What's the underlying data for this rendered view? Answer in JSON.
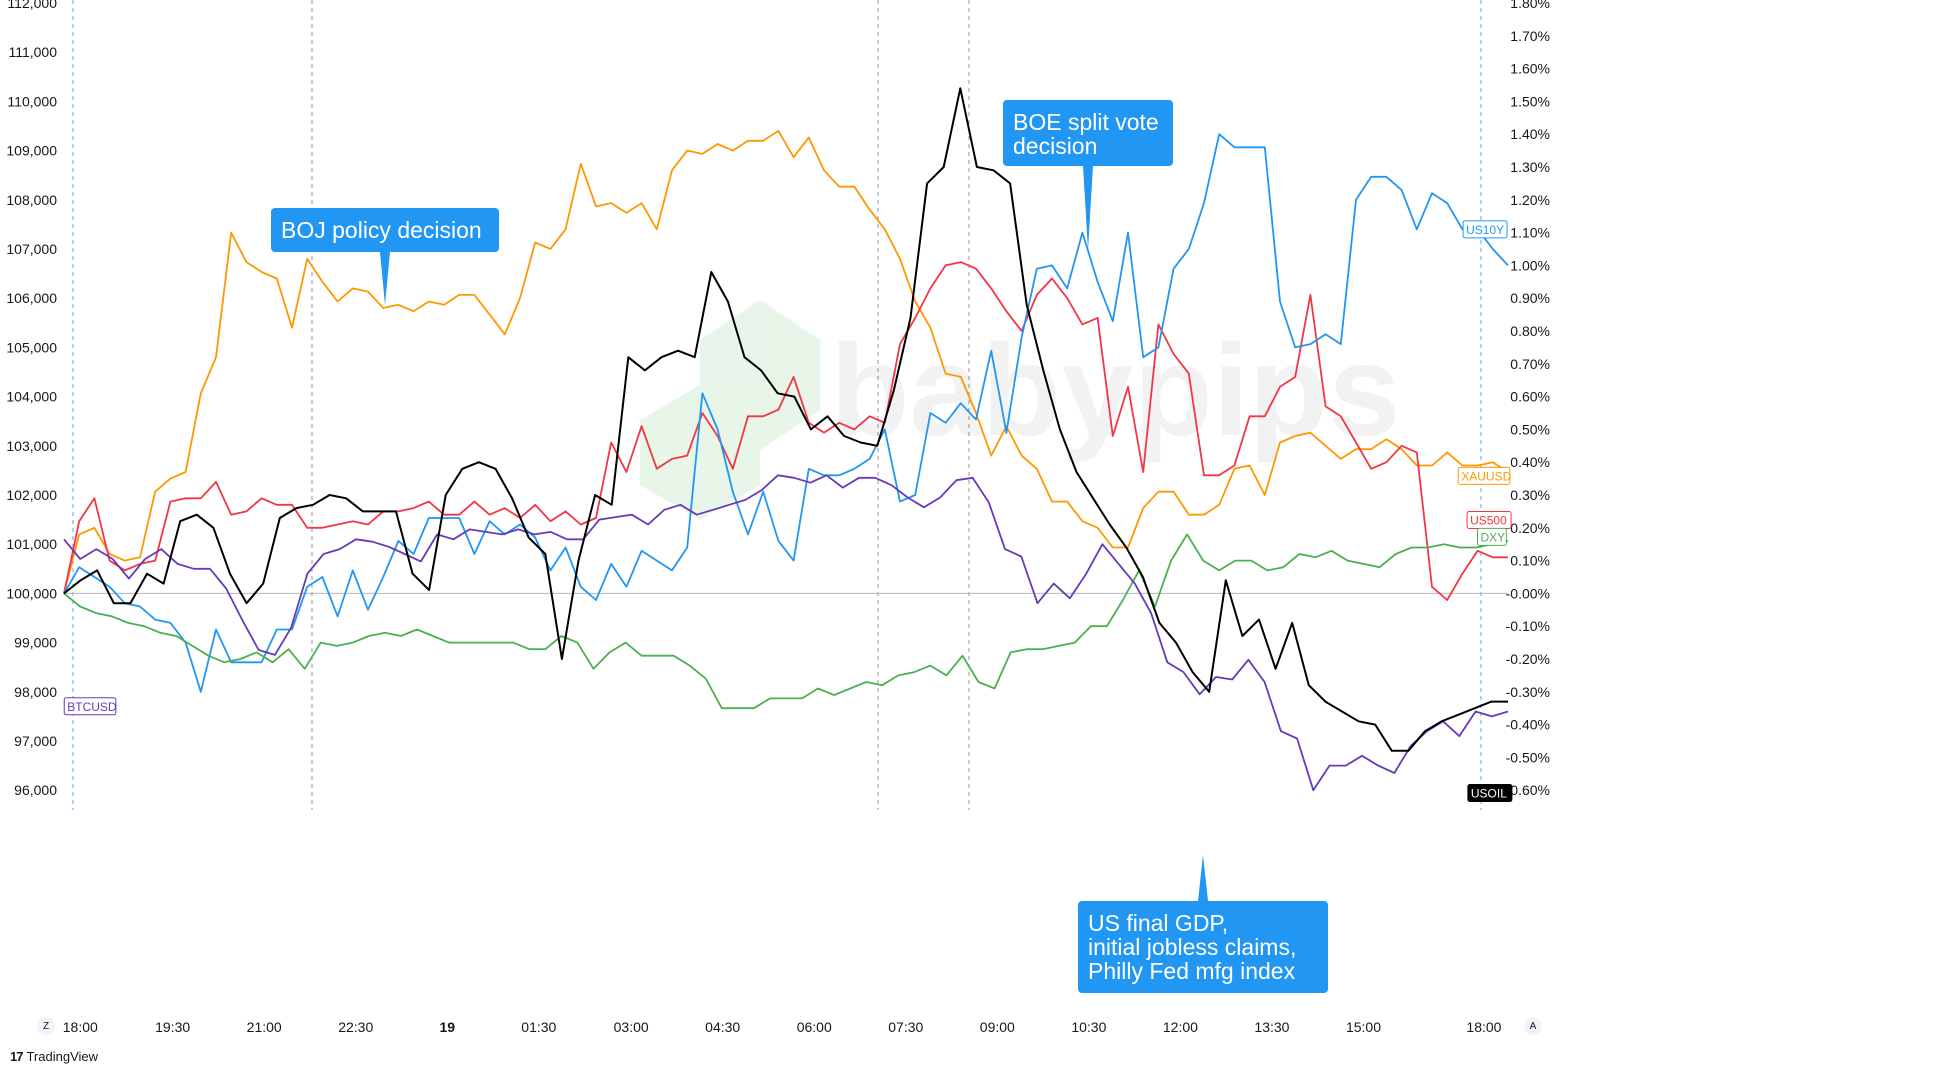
{
  "chart_data": {
    "type": "line",
    "title": "",
    "x_ticks": [
      "18:00",
      "19:30",
      "21:00",
      "22:30",
      "19",
      "01:30",
      "03:00",
      "04:30",
      "06:00",
      "07:30",
      "09:00",
      "10:30",
      "12:00",
      "13:30",
      "15:00",
      "18:00"
    ],
    "y_left": {
      "ylim": [
        95600,
        112000
      ],
      "ticks": [
        "112,000",
        "111,000",
        "110,000",
        "109,000",
        "108,000",
        "107,000",
        "106,000",
        "105,000",
        "104,000",
        "103,000",
        "102,000",
        "101,000",
        "100,000",
        "99,000",
        "98,000",
        "97,000",
        "96,000"
      ]
    },
    "y_right": {
      "unit": "%",
      "ylim": [
        -0.685,
        1.8
      ],
      "ticks": [
        "1.80%",
        "1.70%",
        "1.60%",
        "1.50%",
        "1.40%",
        "1.30%",
        "1.20%",
        "1.10%",
        "1.00%",
        "0.90%",
        "0.80%",
        "0.70%",
        "0.60%",
        "0.50%",
        "0.40%",
        "0.30%",
        "0.20%",
        "0.10%",
        "-0.00%",
        "-0.10%",
        "-0.20%",
        "-0.30%",
        "-0.40%",
        "-0.50%",
        "-0.60%"
      ]
    },
    "series": [
      {
        "name": "XAUUSD",
        "color": "#ff9800",
        "values": [
          0,
          0.18,
          0.2,
          0.12,
          0.1,
          0.11,
          0.31,
          0.35,
          0.37,
          0.61,
          0.72,
          1.1,
          1.01,
          0.98,
          0.96,
          0.81,
          1.02,
          0.95,
          0.89,
          0.93,
          0.92,
          0.87,
          0.88,
          0.86,
          0.89,
          0.88,
          0.91,
          0.91,
          0.85,
          0.79,
          0.9,
          1.07,
          1.05,
          1.11,
          1.31,
          1.18,
          1.19,
          1.16,
          1.19,
          1.11,
          1.29,
          1.35,
          1.34,
          1.37,
          1.35,
          1.38,
          1.38,
          1.41,
          1.33,
          1.39,
          1.29,
          1.24,
          1.24,
          1.17,
          1.11,
          1.02,
          0.89,
          0.81,
          0.67,
          0.66,
          0.55,
          0.42,
          0.51,
          0.42,
          0.38,
          0.28,
          0.28,
          0.22,
          0.2,
          0.14,
          0.14,
          0.26,
          0.31,
          0.31,
          0.24,
          0.24,
          0.27,
          0.38,
          0.39,
          0.3,
          0.46,
          0.48,
          0.49,
          0.45,
          0.41,
          0.44,
          0.44,
          0.47,
          0.44,
          0.39,
          0.39,
          0.43,
          0.39,
          0.39,
          0.4,
          0.37
        ]
      },
      {
        "name": "US500",
        "color": "#f23645",
        "values": [
          0,
          0.22,
          0.29,
          0.1,
          0.07,
          0.09,
          0.1,
          0.28,
          0.29,
          0.29,
          0.34,
          0.24,
          0.25,
          0.29,
          0.27,
          0.27,
          0.2,
          0.2,
          0.21,
          0.22,
          0.21,
          0.25,
          0.25,
          0.26,
          0.28,
          0.24,
          0.24,
          0.28,
          0.24,
          0.26,
          0.23,
          0.27,
          0.22,
          0.25,
          0.21,
          0.23,
          0.46,
          0.37,
          0.51,
          0.38,
          0.41,
          0.42,
          0.55,
          0.48,
          0.38,
          0.54,
          0.54,
          0.56,
          0.66,
          0.52,
          0.49,
          0.52,
          0.5,
          0.54,
          0.52,
          0.76,
          0.84,
          0.93,
          1.0,
          1.01,
          0.99,
          0.93,
          0.86,
          0.8,
          0.91,
          0.96,
          0.9,
          0.82,
          0.84,
          0.48,
          0.63,
          0.37,
          0.82,
          0.73,
          0.67,
          0.36,
          0.36,
          0.39,
          0.54,
          0.54,
          0.63,
          0.66,
          0.91,
          0.57,
          0.54,
          0.46,
          0.38,
          0.4,
          0.45,
          0.43,
          0.02,
          -0.02,
          0.06,
          0.13,
          0.11,
          0.11
        ]
      },
      {
        "name": "US10Y",
        "color": "#2196f3",
        "values": [
          0,
          0.08,
          0.05,
          0.02,
          -0.03,
          -0.04,
          -0.08,
          -0.09,
          -0.15,
          -0.3,
          -0.11,
          -0.21,
          -0.21,
          -0.21,
          -0.11,
          -0.11,
          0.02,
          0.05,
          -0.07,
          0.07,
          -0.05,
          0.05,
          0.16,
          0.12,
          0.23,
          0.23,
          0.23,
          0.12,
          0.22,
          0.18,
          0.21,
          0.17,
          0.07,
          0.14,
          0.02,
          -0.02,
          0.09,
          0.02,
          0.13,
          0.1,
          0.07,
          0.14,
          0.61,
          0.5,
          0.31,
          0.18,
          0.31,
          0.16,
          0.1,
          0.38,
          0.36,
          0.36,
          0.38,
          0.41,
          0.5,
          0.28,
          0.3,
          0.55,
          0.52,
          0.58,
          0.53,
          0.74,
          0.49,
          0.78,
          0.99,
          1.0,
          0.93,
          1.1,
          0.95,
          0.83,
          1.1,
          0.72,
          0.75,
          0.99,
          1.05,
          1.19,
          1.4,
          1.36,
          1.36,
          1.36,
          0.89,
          0.75,
          0.76,
          0.79,
          0.76,
          1.2,
          1.27,
          1.27,
          1.23,
          1.11,
          1.22,
          1.19,
          1.11,
          1.11,
          1.05,
          1.0
        ]
      },
      {
        "name": "DXY",
        "color": "#4caf50",
        "values": [
          0,
          -0.04,
          -0.06,
          -0.07,
          -0.09,
          -0.1,
          -0.12,
          -0.13,
          -0.16,
          -0.19,
          -0.21,
          -0.2,
          -0.18,
          -0.21,
          -0.17,
          -0.23,
          -0.15,
          -0.16,
          -0.15,
          -0.13,
          -0.12,
          -0.13,
          -0.11,
          -0.13,
          -0.15,
          -0.15,
          -0.15,
          -0.15,
          -0.15,
          -0.17,
          -0.17,
          -0.13,
          -0.15,
          -0.23,
          -0.18,
          -0.15,
          -0.19,
          -0.19,
          -0.19,
          -0.22,
          -0.26,
          -0.35,
          -0.35,
          -0.35,
          -0.32,
          -0.32,
          -0.32,
          -0.29,
          -0.31,
          -0.29,
          -0.27,
          -0.28,
          -0.25,
          -0.24,
          -0.22,
          -0.25,
          -0.19,
          -0.27,
          -0.29,
          -0.18,
          -0.17,
          -0.17,
          -0.16,
          -0.15,
          -0.1,
          -0.1,
          -0.02,
          0.07,
          -0.04,
          0.1,
          0.18,
          0.1,
          0.07,
          0.1,
          0.1,
          0.07,
          0.08,
          0.12,
          0.11,
          0.13,
          0.1,
          0.09,
          0.08,
          0.12,
          0.14,
          0.14,
          0.15,
          0.14,
          0.14,
          0.15,
          0.16
        ]
      },
      {
        "name": "BTCUSD",
        "color": "#673ab7",
        "values": [
          101100,
          100700,
          100900,
          100700,
          100300,
          100700,
          100900,
          100600,
          100500,
          100500,
          100100,
          99450,
          98850,
          98750,
          99300,
          100400,
          100800,
          100900,
          101100,
          101050,
          100950,
          100800,
          100650,
          101200,
          101100,
          101300,
          101250,
          101200,
          101300,
          101200,
          101250,
          101100,
          101100,
          101500,
          101550,
          101600,
          101400,
          101700,
          101800,
          101600,
          101700,
          101800,
          101900,
          102100,
          102400,
          102350,
          102250,
          102400,
          102150,
          102350,
          102350,
          102200,
          101950,
          101750,
          101950,
          102300,
          102350,
          101850,
          100900,
          100750,
          99800,
          100200,
          99900,
          100400,
          101000,
          100600,
          100200,
          99600,
          98600,
          98400,
          97950,
          98300,
          98250,
          98650,
          98200,
          97200,
          97050,
          96000,
          96500,
          96500,
          96700,
          96500,
          96350,
          96900,
          97200,
          97400,
          97100,
          97600,
          97500,
          97600
        ]
      },
      {
        "name": "USOIL",
        "color": "#000000",
        "values": [
          0,
          0.04,
          0.07,
          -0.03,
          -0.03,
          0.06,
          0.03,
          0.22,
          0.24,
          0.2,
          0.06,
          -0.03,
          0.03,
          0.23,
          0.26,
          0.27,
          0.3,
          0.29,
          0.25,
          0.25,
          0.25,
          0.06,
          0.01,
          0.3,
          0.38,
          0.4,
          0.38,
          0.29,
          0.17,
          0.12,
          -0.2,
          0.1,
          0.3,
          0.27,
          0.72,
          0.68,
          0.72,
          0.74,
          0.72,
          0.98,
          0.89,
          0.72,
          0.68,
          0.61,
          0.6,
          0.5,
          0.54,
          0.48,
          0.46,
          0.45,
          0.62,
          0.84,
          1.25,
          1.3,
          1.54,
          1.3,
          1.29,
          1.25,
          0.88,
          0.68,
          0.5,
          0.37,
          0.29,
          0.21,
          0.14,
          0.05,
          -0.09,
          -0.15,
          -0.24,
          -0.3,
          0.04,
          -0.13,
          -0.08,
          -0.23,
          -0.09,
          -0.28,
          -0.33,
          -0.36,
          -0.39,
          -0.4,
          -0.48,
          -0.48,
          -0.42,
          -0.39,
          -0.37,
          -0.35,
          -0.33,
          -0.33
        ]
      }
    ],
    "baseline_pct": 0.0,
    "event_lines_x": [
      "18:00",
      "22:00",
      "07:15",
      "08:45",
      "18:00"
    ],
    "annotations": [
      {
        "label": "BOJ policy decision",
        "color": "#2196f3"
      },
      {
        "label": "BOE split vote\ndecision",
        "color": "#2196f3"
      },
      {
        "label": "US final GDP,\ninitial jobless claims,\nPhilly Fed mfg index",
        "color": "#2196f3"
      }
    ],
    "tags": [
      {
        "name": "US10Y"
      },
      {
        "name": "XAUUSD"
      },
      {
        "name": "US500"
      },
      {
        "name": "DXY"
      },
      {
        "name": "BTCUSD"
      },
      {
        "name": "USOIL"
      }
    ],
    "grid": false,
    "watermark": "babypips",
    "scale_buttons": [
      "Z",
      "A"
    ]
  },
  "branding": {
    "label": "TradingView",
    "logo": "17"
  }
}
